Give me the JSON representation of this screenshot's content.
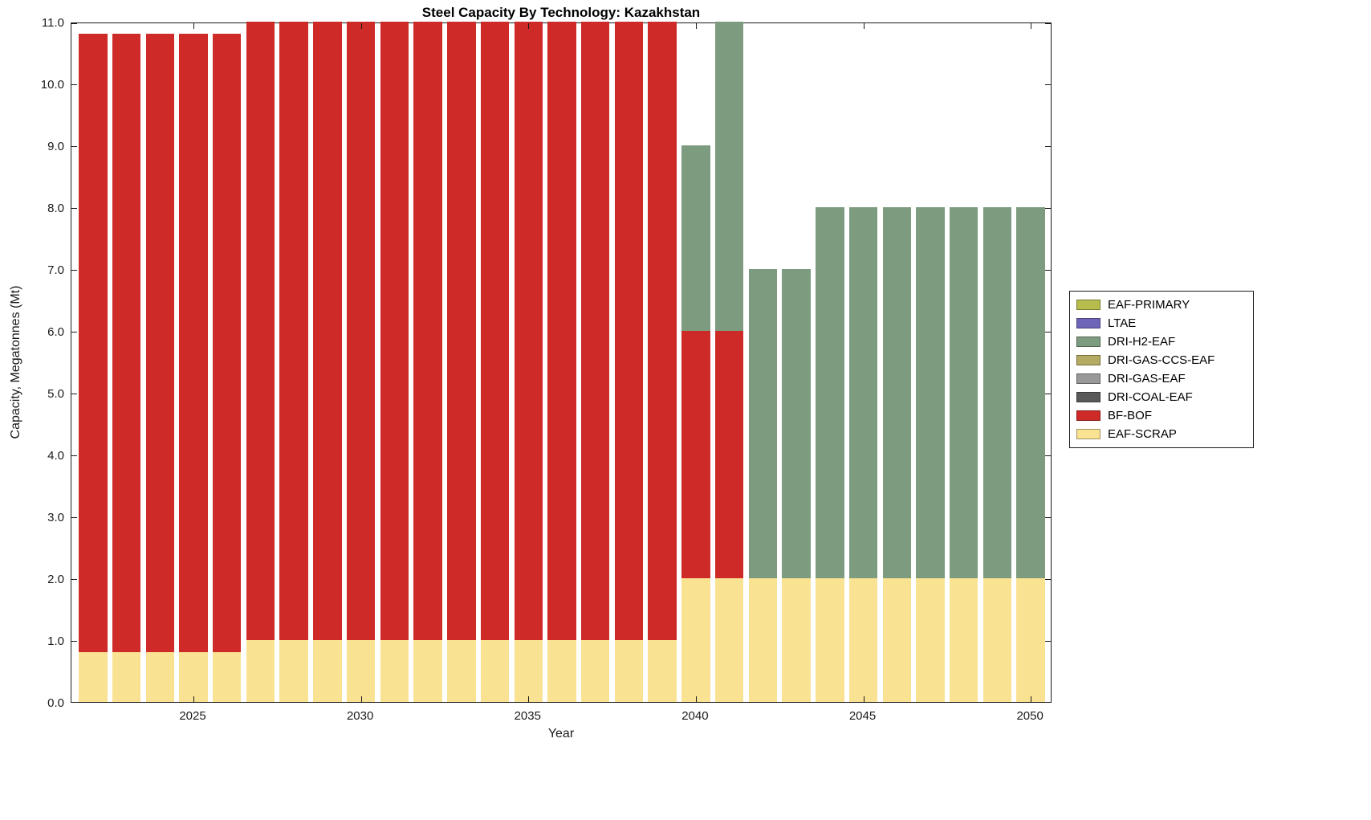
{
  "chart_data": {
    "type": "bar",
    "stacked": true,
    "title": "Steel Capacity By Technology: Kazakhstan",
    "xlabel": "Year",
    "ylabel": "Capacity, Megatonnes (Mt)",
    "ylim": [
      0,
      11
    ],
    "ytick_labels": [
      "0.0",
      "1.0",
      "2.0",
      "3.0",
      "4.0",
      "5.0",
      "6.0",
      "7.0",
      "8.0",
      "9.0",
      "10.0",
      "11.0"
    ],
    "xticks": [
      2025,
      2030,
      2035,
      2040,
      2045,
      2050
    ],
    "years": [
      2022,
      2023,
      2024,
      2025,
      2026,
      2027,
      2028,
      2029,
      2030,
      2031,
      2032,
      2033,
      2034,
      2035,
      2036,
      2037,
      2038,
      2039,
      2040,
      2041,
      2042,
      2043,
      2044,
      2045,
      2046,
      2047,
      2048,
      2049,
      2050
    ],
    "series": [
      {
        "name": "EAF-SCRAP",
        "color": "#FAE293",
        "values": [
          0.8,
          0.8,
          0.8,
          0.8,
          0.8,
          1.0,
          1.0,
          1.0,
          1.0,
          1.0,
          1.0,
          1.0,
          1.0,
          1.0,
          1.0,
          1.0,
          1.0,
          1.0,
          2.0,
          2.0,
          2.0,
          2.0,
          2.0,
          2.0,
          2.0,
          2.0,
          2.0,
          2.0,
          2.0
        ]
      },
      {
        "name": "BF-BOF",
        "color": "#CE2A27",
        "values": [
          10.0,
          10.0,
          10.0,
          10.0,
          10.0,
          10.0,
          10.0,
          10.0,
          10.0,
          10.0,
          10.0,
          10.0,
          10.0,
          10.0,
          10.0,
          10.0,
          10.0,
          10.0,
          4.0,
          4.0,
          0,
          0,
          0,
          0,
          0,
          0,
          0,
          0,
          0
        ]
      },
      {
        "name": "DRI-H2-EAF",
        "color": "#7D9C7F",
        "values": [
          0,
          0,
          0,
          0,
          0,
          0,
          0,
          0,
          0,
          0,
          0,
          0,
          0,
          0,
          0,
          0,
          0,
          0,
          3.0,
          5.0,
          5.0,
          5.0,
          6.0,
          6.0,
          6.0,
          6.0,
          6.0,
          6.0,
          6.0
        ]
      }
    ],
    "legend": [
      {
        "label": "EAF-PRIMARY",
        "color": "#B7BD4D"
      },
      {
        "label": "LTAE",
        "color": "#6F65B8"
      },
      {
        "label": "DRI-H2-EAF",
        "color": "#7D9C7F"
      },
      {
        "label": "DRI-GAS-CCS-EAF",
        "color": "#B5AA62"
      },
      {
        "label": "DRI-GAS-EAF",
        "color": "#999999"
      },
      {
        "label": "DRI-COAL-EAF",
        "color": "#595959"
      },
      {
        "label": "BF-BOF",
        "color": "#CE2A27"
      },
      {
        "label": "EAF-SCRAP",
        "color": "#FAE293"
      }
    ],
    "legend_position": "right",
    "grid": false
  }
}
